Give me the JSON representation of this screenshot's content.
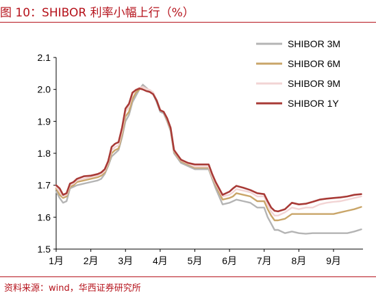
{
  "title": "图 10：SHIBOR 利率小幅上行（%）",
  "source": "资料来源：wind，华西证券研究所",
  "colors": {
    "accent": "#b5121b"
  },
  "chart_data": {
    "type": "line",
    "title": "图 10：SHIBOR 利率小幅上行（%）",
    "xlabel": "",
    "ylabel": "",
    "ylim": [
      1.5,
      2.1
    ],
    "yticks": [
      "1.5",
      "1.6",
      "1.7",
      "1.8",
      "1.9",
      "2.0",
      "2.1"
    ],
    "xticks": [
      "1月",
      "2月",
      "3月",
      "4月",
      "5月",
      "6月",
      "7月",
      "8月",
      "9月"
    ],
    "grid": false,
    "legend_position": "top-right",
    "x": [
      1.0,
      1.1,
      1.2,
      1.3,
      1.4,
      1.5,
      1.6,
      1.8,
      2.0,
      2.2,
      2.3,
      2.4,
      2.5,
      2.6,
      2.7,
      2.8,
      2.9,
      3.0,
      3.1,
      3.2,
      3.3,
      3.4,
      3.5,
      3.6,
      3.7,
      3.8,
      3.9,
      4.0,
      4.1,
      4.2,
      4.3,
      4.4,
      4.6,
      4.8,
      5.0,
      5.2,
      5.3,
      5.4,
      5.5,
      5.6,
      5.8,
      6.0,
      6.1,
      6.2,
      6.4,
      6.6,
      6.8,
      7.0,
      7.1,
      7.2,
      7.3,
      7.4,
      7.6,
      7.8,
      8.0,
      8.2,
      8.4,
      8.6,
      8.8,
      9.0,
      9.2,
      9.4,
      9.6,
      9.8
    ],
    "series": [
      {
        "name": "SHIBOR 3M",
        "color": "#b4b4b4",
        "values": [
          1.68,
          1.66,
          1.645,
          1.65,
          1.69,
          1.695,
          1.7,
          1.705,
          1.71,
          1.715,
          1.72,
          1.735,
          1.76,
          1.79,
          1.8,
          1.81,
          1.85,
          1.9,
          1.92,
          1.96,
          1.98,
          2.0,
          2.015,
          2.005,
          1.995,
          1.985,
          1.96,
          1.93,
          1.925,
          1.9,
          1.87,
          1.8,
          1.77,
          1.76,
          1.75,
          1.75,
          1.75,
          1.75,
          1.72,
          1.69,
          1.64,
          1.645,
          1.65,
          1.655,
          1.65,
          1.645,
          1.63,
          1.63,
          1.6,
          1.58,
          1.56,
          1.56,
          1.55,
          1.555,
          1.55,
          1.548,
          1.55,
          1.55,
          1.55,
          1.55,
          1.55,
          1.55,
          1.555,
          1.562
        ]
      },
      {
        "name": "SHIBOR 6M",
        "color": "#c9a568",
        "values": [
          1.69,
          1.67,
          1.66,
          1.665,
          1.695,
          1.7,
          1.71,
          1.715,
          1.72,
          1.725,
          1.73,
          1.74,
          1.765,
          1.8,
          1.81,
          1.815,
          1.86,
          1.915,
          1.93,
          1.97,
          1.99,
          2.0,
          2.008,
          2.002,
          1.998,
          1.99,
          1.965,
          1.935,
          1.93,
          1.905,
          1.875,
          1.805,
          1.775,
          1.765,
          1.755,
          1.755,
          1.755,
          1.755,
          1.725,
          1.7,
          1.655,
          1.66,
          1.665,
          1.675,
          1.67,
          1.665,
          1.65,
          1.65,
          1.625,
          1.605,
          1.59,
          1.59,
          1.595,
          1.61,
          1.61,
          1.61,
          1.61,
          1.61,
          1.61,
          1.61,
          1.615,
          1.62,
          1.625,
          1.632
        ]
      },
      {
        "name": "SHIBOR 9M",
        "color": "#f2d4d4",
        "values": [
          1.695,
          1.68,
          1.665,
          1.67,
          1.7,
          1.705,
          1.715,
          1.72,
          1.725,
          1.73,
          1.735,
          1.745,
          1.77,
          1.81,
          1.82,
          1.825,
          1.87,
          1.93,
          1.945,
          1.985,
          2.0,
          2.005,
          2.008,
          2.002,
          1.998,
          1.99,
          1.968,
          1.935,
          1.93,
          1.908,
          1.878,
          1.808,
          1.778,
          1.768,
          1.758,
          1.758,
          1.758,
          1.758,
          1.728,
          1.705,
          1.665,
          1.67,
          1.678,
          1.688,
          1.683,
          1.678,
          1.665,
          1.665,
          1.638,
          1.618,
          1.605,
          1.605,
          1.615,
          1.63,
          1.625,
          1.63,
          1.63,
          1.64,
          1.645,
          1.648,
          1.65,
          1.655,
          1.66,
          1.665
        ]
      },
      {
        "name": "SHIBOR 1Y",
        "color": "#a83a36",
        "values": [
          1.7,
          1.69,
          1.67,
          1.675,
          1.705,
          1.71,
          1.72,
          1.728,
          1.73,
          1.735,
          1.74,
          1.75,
          1.775,
          1.82,
          1.83,
          1.835,
          1.88,
          1.94,
          1.955,
          1.99,
          1.998,
          2.003,
          2.0,
          1.995,
          1.992,
          1.985,
          1.965,
          1.935,
          1.93,
          1.91,
          1.88,
          1.81,
          1.78,
          1.77,
          1.765,
          1.765,
          1.765,
          1.765,
          1.735,
          1.71,
          1.67,
          1.68,
          1.69,
          1.698,
          1.692,
          1.685,
          1.675,
          1.672,
          1.65,
          1.63,
          1.62,
          1.618,
          1.625,
          1.645,
          1.64,
          1.642,
          1.648,
          1.655,
          1.658,
          1.66,
          1.662,
          1.665,
          1.67,
          1.672
        ]
      }
    ]
  }
}
